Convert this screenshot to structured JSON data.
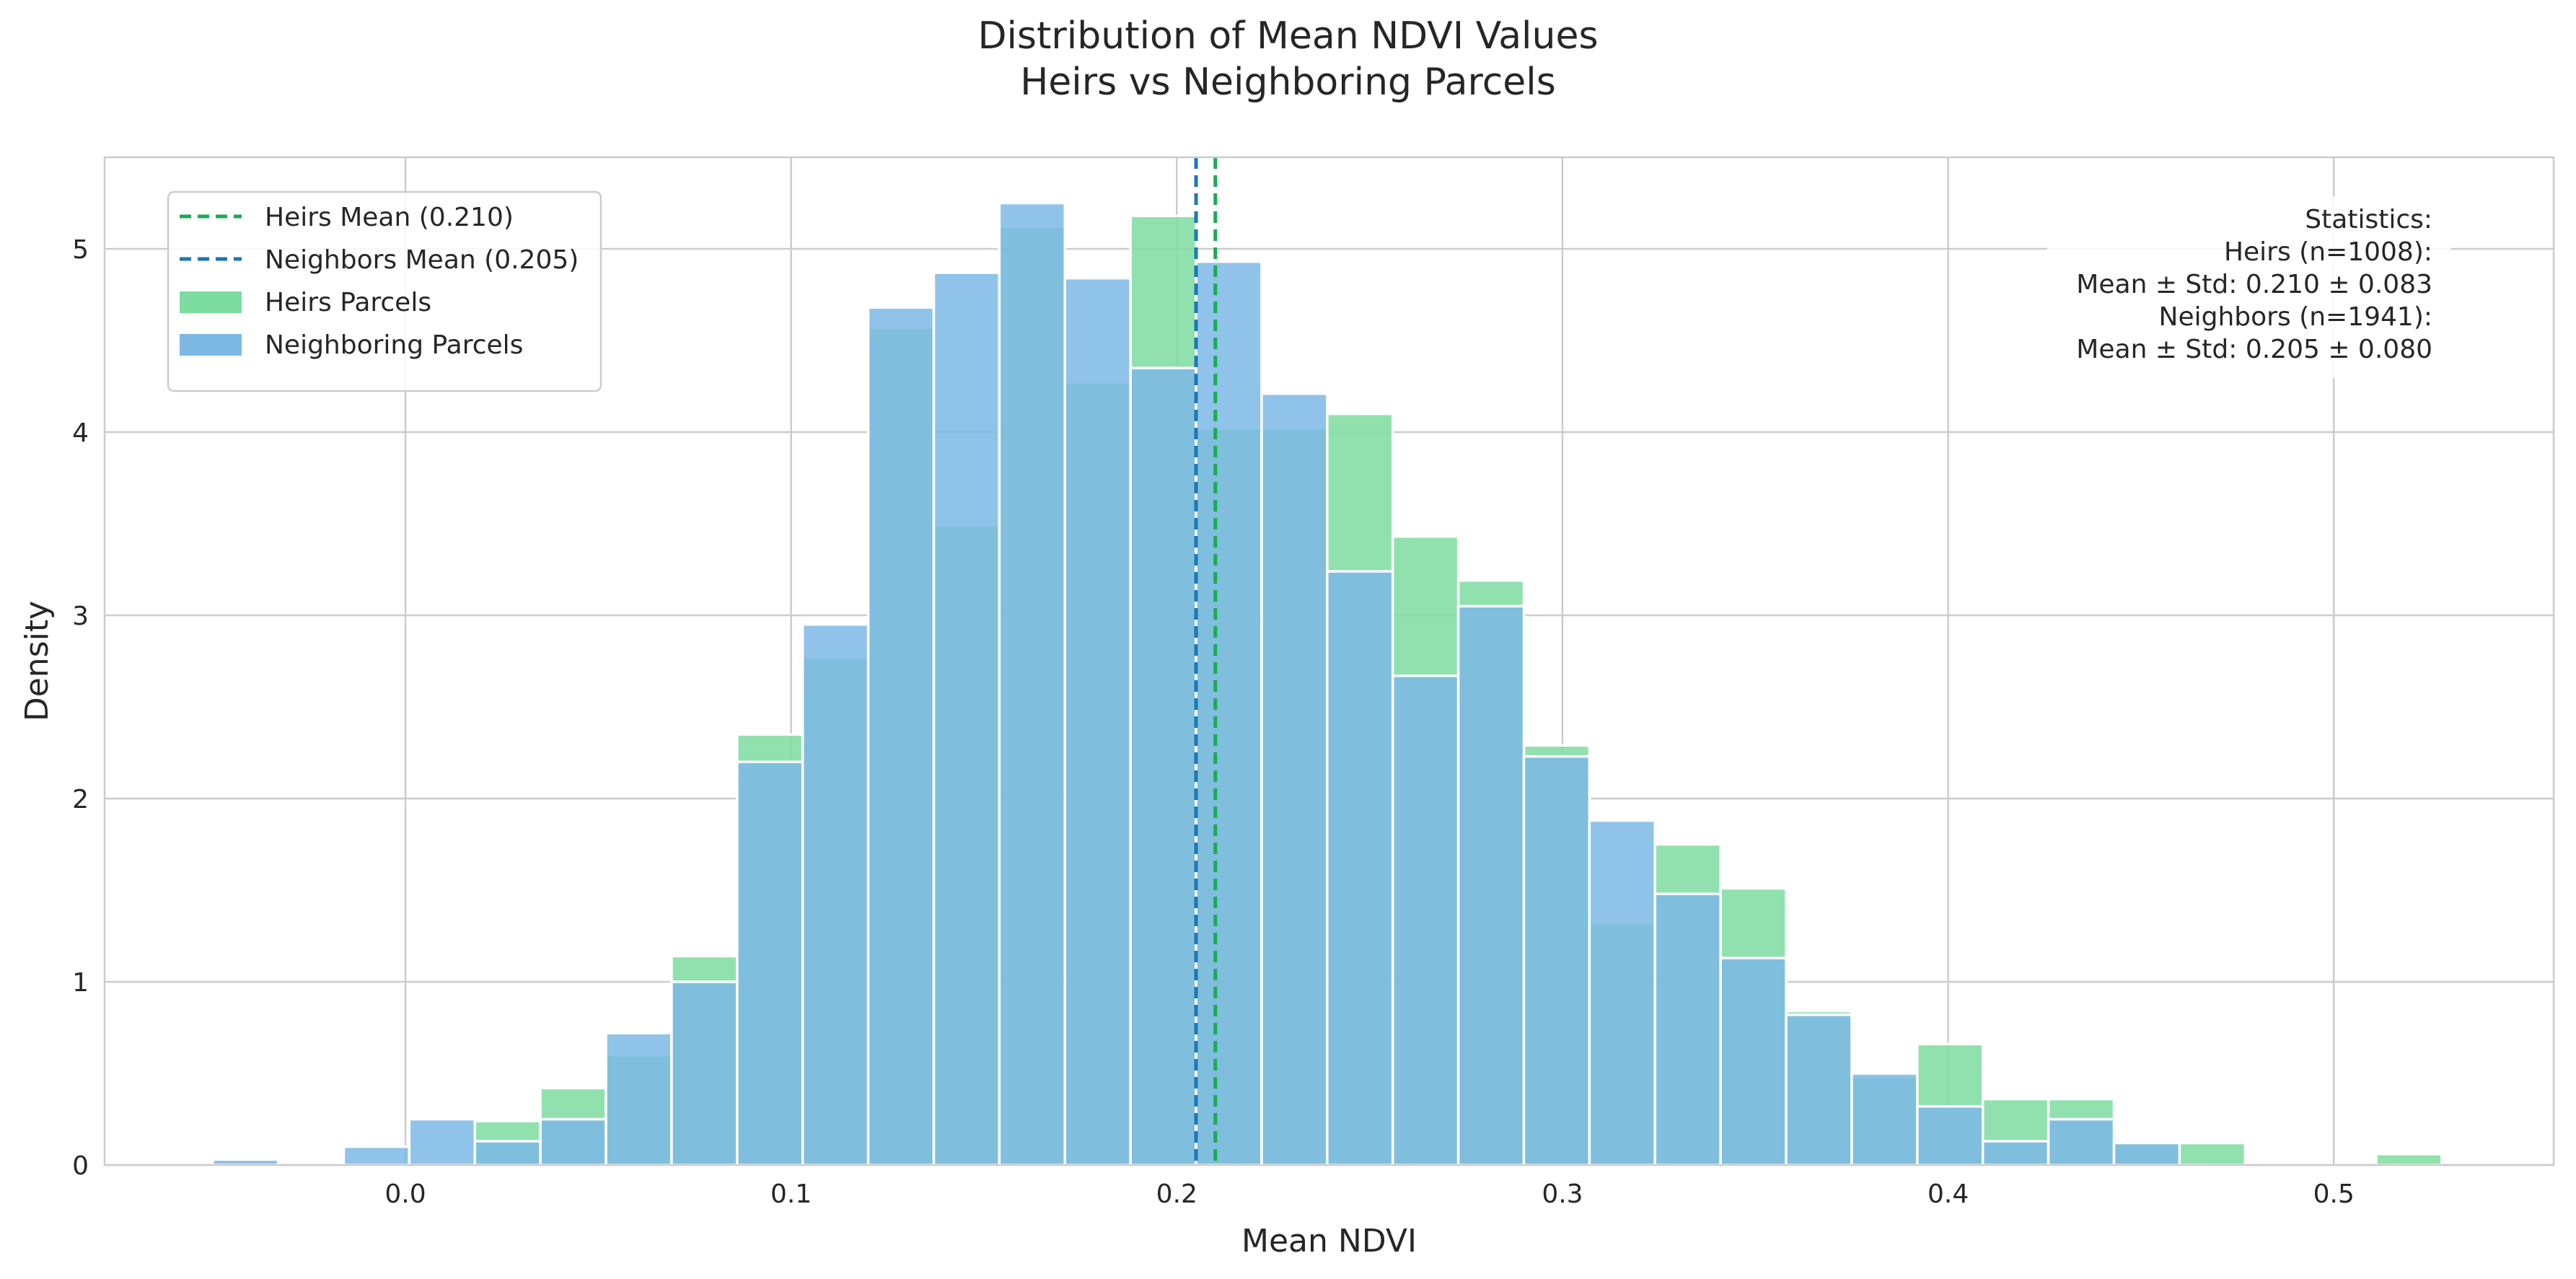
{
  "chart_data": {
    "type": "bar",
    "title_lines": [
      "Distribution of Mean NDVI Values",
      "Heirs vs Neighboring Parcels"
    ],
    "xlabel": "Mean NDVI",
    "ylabel": "Density",
    "xlim": [
      -0.078,
      0.557
    ],
    "ylim": [
      0,
      5.5
    ],
    "xticks": [
      0.0,
      0.1,
      0.2,
      0.3,
      0.4,
      0.5
    ],
    "xtick_labels": [
      "0.0",
      "0.1",
      "0.2",
      "0.3",
      "0.4",
      "0.5"
    ],
    "yticks": [
      0,
      1,
      2,
      3,
      4,
      5
    ],
    "ytick_labels": [
      "0",
      "1",
      "2",
      "3",
      "4",
      "5"
    ],
    "grid": true,
    "legend_position": "top-left",
    "legend": [
      {
        "label": "Heirs Mean (0.210)",
        "kind": "dashed-line",
        "color": "#1aaa55"
      },
      {
        "label": "Neighbors Mean (0.205)",
        "kind": "dashed-line",
        "color": "#1f77b4"
      },
      {
        "label": "Heirs Parcels",
        "kind": "patch",
        "color": "#7ddca0"
      },
      {
        "label": "Neighboring Parcels",
        "kind": "patch",
        "color": "#7cb9e5"
      }
    ],
    "mean_lines": [
      {
        "series": "Heirs Parcels",
        "x": 0.21,
        "color": "#1aaa55"
      },
      {
        "series": "Neighboring Parcels",
        "x": 0.205,
        "color": "#1f77b4"
      }
    ],
    "stats_box": {
      "position": "top-right",
      "lines": [
        "Statistics:",
        "Heirs (n=1008):",
        "Mean ± Std: 0.210 ± 0.083",
        "Neighbors (n=1941):",
        "Mean ± Std: 0.205 ± 0.080"
      ]
    },
    "series": [
      {
        "name": "Heirs Parcels",
        "color": "#7ddca0",
        "bins": [
          [
            0.018,
            0.035,
            0.24
          ],
          [
            0.035,
            0.052,
            0.42
          ],
          [
            0.052,
            0.069,
            0.6
          ],
          [
            0.069,
            0.086,
            1.14
          ],
          [
            0.086,
            0.103,
            2.35
          ],
          [
            0.103,
            0.12,
            2.77
          ],
          [
            0.12,
            0.137,
            4.57
          ],
          [
            0.137,
            0.154,
            3.49
          ],
          [
            0.154,
            0.171,
            5.12
          ],
          [
            0.171,
            0.188,
            4.27
          ],
          [
            0.188,
            0.205,
            5.18
          ],
          [
            0.205,
            0.222,
            4.02
          ],
          [
            0.222,
            0.239,
            4.02
          ],
          [
            0.239,
            0.256,
            4.1
          ],
          [
            0.256,
            0.273,
            3.43
          ],
          [
            0.273,
            0.29,
            3.19
          ],
          [
            0.29,
            0.307,
            2.29
          ],
          [
            0.307,
            0.324,
            1.32
          ],
          [
            0.324,
            0.341,
            1.75
          ],
          [
            0.341,
            0.358,
            1.51
          ],
          [
            0.358,
            0.375,
            0.84
          ],
          [
            0.375,
            0.392,
            0.48
          ],
          [
            0.392,
            0.409,
            0.66
          ],
          [
            0.409,
            0.426,
            0.36
          ],
          [
            0.426,
            0.443,
            0.36
          ],
          [
            0.443,
            0.46,
            0.12
          ],
          [
            0.46,
            0.477,
            0.12
          ],
          [
            0.511,
            0.528,
            0.06
          ]
        ]
      },
      {
        "name": "Neighboring Parcels",
        "color": "#7cb9e5",
        "bins": [
          [
            -0.05,
            -0.033,
            0.03
          ],
          [
            -0.016,
            0.001,
            0.1
          ],
          [
            0.001,
            0.018,
            0.25
          ],
          [
            0.018,
            0.035,
            0.13
          ],
          [
            0.035,
            0.052,
            0.25
          ],
          [
            0.052,
            0.069,
            0.72
          ],
          [
            0.069,
            0.086,
            1.0
          ],
          [
            0.086,
            0.103,
            2.2
          ],
          [
            0.103,
            0.12,
            2.95
          ],
          [
            0.12,
            0.137,
            4.68
          ],
          [
            0.137,
            0.154,
            4.87
          ],
          [
            0.154,
            0.171,
            5.25
          ],
          [
            0.171,
            0.188,
            4.84
          ],
          [
            0.188,
            0.205,
            4.35
          ],
          [
            0.205,
            0.222,
            4.93
          ],
          [
            0.222,
            0.239,
            4.21
          ],
          [
            0.239,
            0.256,
            3.24
          ],
          [
            0.256,
            0.273,
            2.67
          ],
          [
            0.273,
            0.29,
            3.05
          ],
          [
            0.29,
            0.307,
            2.23
          ],
          [
            0.307,
            0.324,
            1.88
          ],
          [
            0.324,
            0.341,
            1.48
          ],
          [
            0.341,
            0.358,
            1.13
          ],
          [
            0.358,
            0.375,
            0.82
          ],
          [
            0.375,
            0.392,
            0.5
          ],
          [
            0.392,
            0.409,
            0.32
          ],
          [
            0.409,
            0.426,
            0.13
          ],
          [
            0.426,
            0.443,
            0.25
          ],
          [
            0.443,
            0.46,
            0.12
          ]
        ]
      }
    ]
  }
}
